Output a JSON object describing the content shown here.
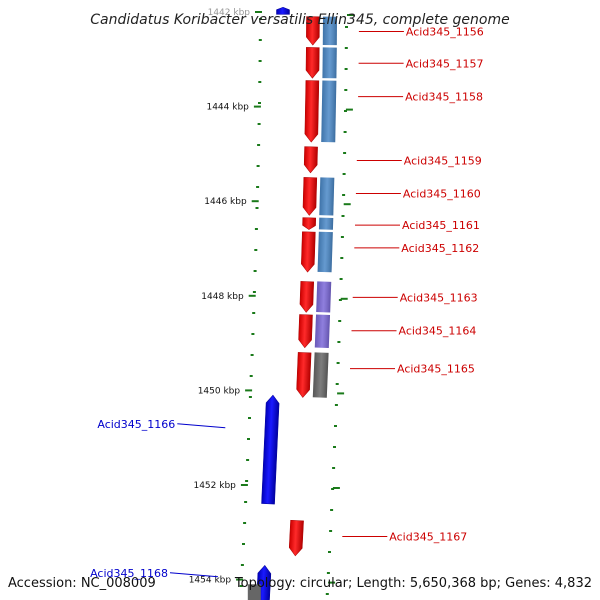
{
  "title": "Candidatus Koribacter versatilis Ellin345, complete genome",
  "footer": {
    "accession": "Accession: NC_008009",
    "summary": "Topology: circular; Length: 5,650,368 bp; Genes: 4,832"
  },
  "ticks": [
    {
      "label": "1442 kbp",
      "kbp": 1442
    },
    {
      "label": "1444 kbp",
      "kbp": 1444
    },
    {
      "label": "1446 kbp",
      "kbp": 1446
    },
    {
      "label": "1448 kbp",
      "kbp": 1448
    },
    {
      "label": "1450 kbp",
      "kbp": 1450
    },
    {
      "label": "1452 kbp",
      "kbp": 1452
    },
    {
      "label": "1454 kbp",
      "kbp": 1454
    }
  ],
  "forward_genes": [
    {
      "name": "Acid345_1156",
      "start": 1442.1,
      "end": 1442.7,
      "cog_color": "#4a88c7"
    },
    {
      "name": "Acid345_1157",
      "start": 1442.75,
      "end": 1443.4,
      "cog_color": "#4a88c7"
    },
    {
      "name": "Acid345_1158",
      "start": 1443.45,
      "end": 1444.75,
      "cog_color": "#4a88c7"
    },
    {
      "name": "Acid345_1159",
      "start": 1444.85,
      "end": 1445.4,
      "cog_color": ""
    },
    {
      "name": "Acid345_1160",
      "start": 1445.5,
      "end": 1446.3,
      "cog_color": "#4a88c7"
    },
    {
      "name": "Acid345_1161",
      "start": 1446.35,
      "end": 1446.6,
      "cog_color": "#4a88c7"
    },
    {
      "name": "Acid345_1162",
      "start": 1446.65,
      "end": 1447.5,
      "cog_color": "#4a88c7"
    },
    {
      "name": "Acid345_1163",
      "start": 1447.7,
      "end": 1448.35,
      "cog_color": "#7b68d8"
    },
    {
      "name": "Acid345_1164",
      "start": 1448.4,
      "end": 1449.1,
      "cog_color": "#7b68d8"
    },
    {
      "name": "Acid345_1165",
      "start": 1449.2,
      "end": 1450.15,
      "cog_color": "#666666"
    },
    {
      "name": "Acid345_1167",
      "start": 1452.75,
      "end": 1453.5,
      "cog_color": ""
    }
  ],
  "reverse_genes": [
    {
      "name": "",
      "start": 1441.9,
      "end": 1442.05
    },
    {
      "name": "Acid345_1166",
      "start": 1450.1,
      "end": 1452.4
    },
    {
      "name": "Acid345_1168",
      "start": 1453.7,
      "end": 1454.5
    }
  ],
  "colors": {
    "forward": "#ff0000",
    "reverse": "#0000ff",
    "backbone": "#888888",
    "tick": "#1a7a1a",
    "label_fwd": "#cc0000",
    "label_rev": "#0000cc"
  }
}
